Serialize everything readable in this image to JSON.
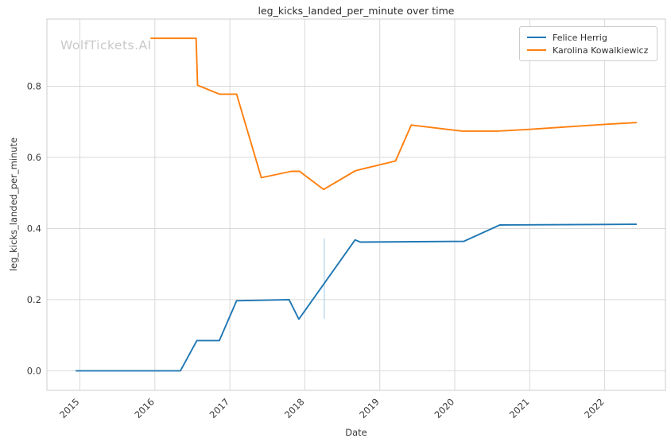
{
  "watermark": "WolfTickets.AI",
  "colors": {
    "background": "#ffffff",
    "grid": "#d9d9d9",
    "axis_border": "#cccccc",
    "text": "#3a3a3a",
    "series_blue": "#1f77b4",
    "series_orange": "#ff7f0e",
    "ci_band": "#b5d5ec",
    "watermark": "#c9c9c9"
  },
  "chart_data": {
    "type": "line",
    "title": "leg_kicks_landed_per_minute over time",
    "xlabel": "Date",
    "ylabel": "leg_kicks_landed_per_minute",
    "grid": true,
    "legend_position": "upper right",
    "xlim": [
      2014.56,
      2022.81
    ],
    "ylim": [
      -0.055,
      0.989
    ],
    "x_ticks": [
      2015,
      2016,
      2017,
      2018,
      2019,
      2020,
      2021,
      2022
    ],
    "x_tick_labels": [
      "2015",
      "2016",
      "2017",
      "2018",
      "2019",
      "2020",
      "2021",
      "2022"
    ],
    "y_ticks": [
      0.0,
      0.2,
      0.4,
      0.6,
      0.8
    ],
    "y_tick_labels": [
      "0.0",
      "0.2",
      "0.4",
      "0.6",
      "0.8"
    ],
    "series": [
      {
        "name": "Felice Herrig",
        "color": "#1f77b4",
        "points": [
          [
            2014.95,
            0.0
          ],
          [
            2016.34,
            0.0
          ],
          [
            2016.56,
            0.085
          ],
          [
            2016.86,
            0.085
          ],
          [
            2017.09,
            0.197
          ],
          [
            2017.79,
            0.2
          ],
          [
            2017.92,
            0.145
          ],
          [
            2018.67,
            0.368
          ],
          [
            2018.74,
            0.362
          ],
          [
            2020.12,
            0.364
          ],
          [
            2020.6,
            0.41
          ],
          [
            2022.42,
            0.412
          ]
        ]
      },
      {
        "name": "Karolina Kowalkiewicz",
        "color": "#ff7f0e",
        "points": [
          [
            2015.95,
            0.935
          ],
          [
            2016.55,
            0.935
          ],
          [
            2016.57,
            0.803
          ],
          [
            2016.86,
            0.778
          ],
          [
            2017.09,
            0.778
          ],
          [
            2017.42,
            0.543
          ],
          [
            2017.82,
            0.561
          ],
          [
            2017.93,
            0.561
          ],
          [
            2018.25,
            0.51
          ],
          [
            2018.67,
            0.562
          ],
          [
            2018.74,
            0.566
          ],
          [
            2019.21,
            0.59
          ],
          [
            2019.42,
            0.691
          ],
          [
            2020.1,
            0.674
          ],
          [
            2020.57,
            0.674
          ],
          [
            2021.0,
            0.679
          ],
          [
            2022.0,
            0.693
          ],
          [
            2022.42,
            0.698
          ]
        ]
      }
    ],
    "annotations": [
      {
        "type": "vertical_interval",
        "x": 2018.26,
        "y0": 0.146,
        "y1": 0.372,
        "color": "#b5d5ec"
      }
    ]
  }
}
